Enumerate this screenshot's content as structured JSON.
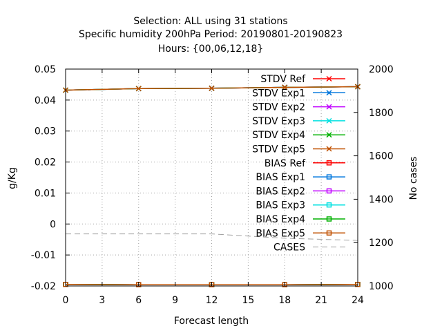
{
  "chart_data": {
    "type": "line",
    "title_lines": [
      "Selection: ALL using    31 stations",
      "Specific humidity 200hPa   Period: 20190801-20190823",
      "Hours: {00,06,12,18}"
    ],
    "xlabel": "Forecast length",
    "ylabel": "g/Kg",
    "y2label": "No cases",
    "x": [
      0,
      6,
      12,
      18,
      24
    ],
    "xlim": [
      0,
      24
    ],
    "xticks": [
      "0",
      "3",
      "6",
      "9",
      "12",
      "15",
      "18",
      "21",
      "24"
    ],
    "ylim": [
      -0.02,
      0.05
    ],
    "yticks": [
      "0.05",
      "0.04",
      "0.03",
      "0.02",
      "0.01",
      "0",
      "-0.01",
      "-0.02"
    ],
    "y2lim": [
      1000,
      2000
    ],
    "y2ticks": [
      "2000",
      "1800",
      "1600",
      "1400",
      "1200",
      "1000"
    ],
    "grid": true,
    "legend_position": "top-right",
    "series": [
      {
        "name": "STDV Ref",
        "color": "#ff0000",
        "marker": "x",
        "axis": "y1",
        "values": [
          0.0432,
          0.0437,
          0.0438,
          0.0441,
          0.0443
        ]
      },
      {
        "name": "STDV Exp1",
        "color": "#0077dd",
        "marker": "x",
        "axis": "y1",
        "values": [
          0.0432,
          0.0437,
          0.0438,
          0.0441,
          0.0443
        ]
      },
      {
        "name": "STDV Exp2",
        "color": "#c000ff",
        "marker": "x",
        "axis": "y1",
        "values": [
          0.0432,
          0.0437,
          0.0438,
          0.0441,
          0.0443
        ]
      },
      {
        "name": "STDV Exp3",
        "color": "#00e0e0",
        "marker": "x",
        "axis": "y1",
        "values": [
          0.0432,
          0.0437,
          0.0438,
          0.0441,
          0.0443
        ]
      },
      {
        "name": "STDV Exp4",
        "color": "#00b000",
        "marker": "x",
        "axis": "y1",
        "values": [
          0.0432,
          0.0437,
          0.0438,
          0.0441,
          0.0443
        ]
      },
      {
        "name": "STDV Exp5",
        "color": "#c05000",
        "marker": "x",
        "axis": "y1",
        "values": [
          0.0432,
          0.0437,
          0.0438,
          0.0441,
          0.0443
        ]
      },
      {
        "name": "BIAS Ref",
        "color": "#ff0000",
        "marker": "square",
        "axis": "y1",
        "values": [
          -0.0195,
          -0.0196,
          -0.0196,
          -0.0196,
          -0.0195
        ]
      },
      {
        "name": "BIAS Exp1",
        "color": "#0077dd",
        "marker": "square",
        "axis": "y1",
        "values": [
          -0.0195,
          -0.0196,
          -0.0196,
          -0.0196,
          -0.0195
        ]
      },
      {
        "name": "BIAS Exp2",
        "color": "#c000ff",
        "marker": "square",
        "axis": "y1",
        "values": [
          -0.0195,
          -0.0196,
          -0.0196,
          -0.0196,
          -0.0195
        ]
      },
      {
        "name": "BIAS Exp3",
        "color": "#00e0e0",
        "marker": "square",
        "axis": "y1",
        "values": [
          -0.0195,
          -0.0196,
          -0.0196,
          -0.0196,
          -0.0195
        ]
      },
      {
        "name": "BIAS Exp4",
        "color": "#00b000",
        "marker": "square",
        "axis": "y1",
        "values": [
          -0.0195,
          -0.0196,
          -0.0196,
          -0.0196,
          -0.0195
        ]
      },
      {
        "name": "BIAS Exp5",
        "color": "#c05000",
        "marker": "square",
        "axis": "y1",
        "values": [
          -0.0195,
          -0.0196,
          -0.0196,
          -0.0196,
          -0.0195
        ]
      },
      {
        "name": "CASES",
        "color": "#a0a0a0",
        "marker": "none",
        "dashed": true,
        "axis": "y2",
        "values": [
          1240,
          1240,
          1240,
          1220,
          1210
        ]
      }
    ]
  }
}
